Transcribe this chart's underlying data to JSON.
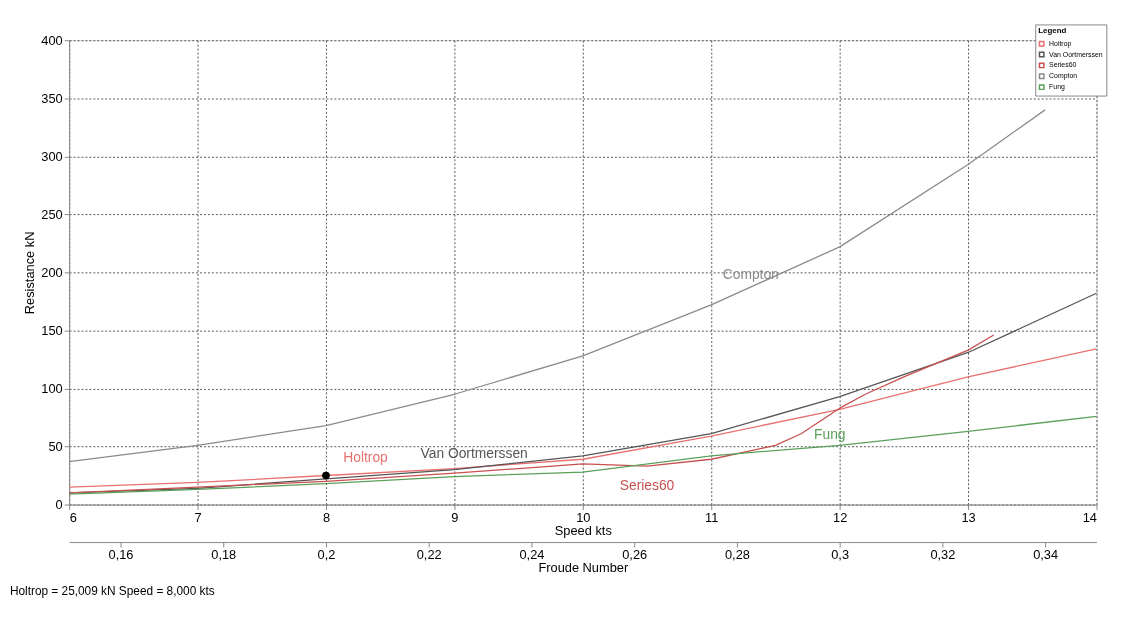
{
  "chart_data": {
    "type": "line",
    "xlabel": "Speed  kts",
    "ylabel": "Resistance  kN",
    "x2label": "Froude Number",
    "legend_title": "Legend",
    "xlim": [
      6,
      14
    ],
    "xticks": [
      {
        "value": 6,
        "label": "6"
      },
      {
        "value": 7,
        "label": "7"
      },
      {
        "value": 8,
        "label": "8"
      },
      {
        "value": 9,
        "label": "9"
      },
      {
        "value": 10,
        "label": "10"
      },
      {
        "value": 11,
        "label": "11"
      },
      {
        "value": 12,
        "label": "12"
      },
      {
        "value": 13,
        "label": "13"
      },
      {
        "value": 14,
        "label": "14"
      }
    ],
    "ylim": [
      0,
      400
    ],
    "yticks": [
      0,
      50,
      100,
      150,
      200,
      250,
      300,
      350,
      400
    ],
    "x2lim": [
      0.15,
      0.35
    ],
    "x2ticks": [
      {
        "value": 0.16,
        "label": "0,16"
      },
      {
        "value": 0.18,
        "label": "0,18"
      },
      {
        "value": 0.2,
        "label": "0,2"
      },
      {
        "value": 0.22,
        "label": "0,22"
      },
      {
        "value": 0.24,
        "label": "0,24"
      },
      {
        "value": 0.26,
        "label": "0,26"
      },
      {
        "value": 0.28,
        "label": "0,28"
      },
      {
        "value": 0.3,
        "label": "0,3"
      },
      {
        "value": 0.32,
        "label": "0,32"
      },
      {
        "value": 0.34,
        "label": "0,34"
      }
    ],
    "grid": true,
    "legend": "top right",
    "marker": "none",
    "line_style": "solid",
    "series": [
      {
        "name": "Holtrop",
        "color": "#e87070",
        "x": [
          6,
          7,
          8,
          9,
          10,
          11,
          12,
          13,
          14
        ],
        "values": [
          15,
          19,
          25,
          31,
          39,
          59,
          82,
          110,
          134
        ]
      },
      {
        "name": "Van Oortmerssen",
        "color": "#555555",
        "x": [
          6,
          7,
          8,
          9,
          10,
          11,
          12,
          13,
          14
        ],
        "values": [
          10,
          14,
          22,
          30,
          42,
          61,
          93,
          131,
          182
        ]
      },
      {
        "name": "Series60",
        "color": "#c85050",
        "x": [
          6,
          7,
          8,
          9,
          9.5,
          10,
          10.5,
          11,
          11.5,
          11.7,
          12,
          12.2,
          12.5,
          13,
          13.2
        ],
        "values": [
          10,
          15,
          20,
          27,
          31,
          35,
          33,
          39,
          51,
          61,
          83,
          95,
          110,
          133,
          146
        ]
      },
      {
        "name": "Compton",
        "color": "#8a8a8a",
        "x": [
          6,
          7,
          8,
          9,
          10,
          11,
          12,
          13,
          13.6
        ],
        "values": [
          37,
          51,
          68,
          95,
          128,
          172,
          222,
          293,
          340
        ]
      },
      {
        "name": "Fung",
        "color": "#5aa05a",
        "x": [
          6,
          7,
          8,
          9,
          10,
          11,
          12,
          13,
          14
        ],
        "values": [
          9,
          13,
          18,
          24,
          28,
          42,
          51,
          63,
          76
        ]
      },
      {
        "type": "scatter",
        "color": "#000000",
        "x": [
          8
        ],
        "values": [
          25
        ]
      }
    ],
    "annotations": [
      "Holtrop  =  25,009 kN      Speed =  8,000 kts"
    ]
  }
}
